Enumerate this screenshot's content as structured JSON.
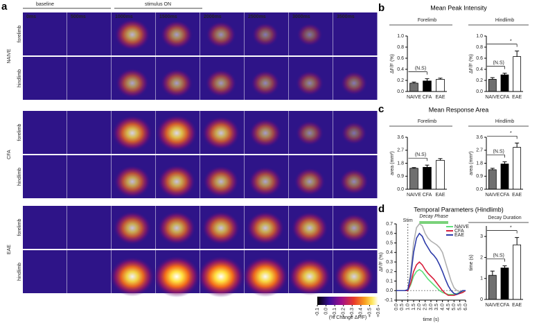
{
  "panel_a": {
    "label": "a",
    "phases": [
      "baseline",
      "stimulus ON"
    ],
    "times": [
      "0ms",
      "500ms",
      "1000ms",
      "1500ms",
      "2000ms",
      "2500ms",
      "3000ms",
      "3500ms"
    ],
    "groups": [
      {
        "name": "NAIVE",
        "rows": [
          "forelimb",
          "hindlimb"
        ]
      },
      {
        "name": "CFA",
        "rows": [
          "forelimb",
          "hindlimb"
        ]
      },
      {
        "name": "EAE",
        "rows": [
          "forelimb",
          "hindlimb"
        ]
      }
    ],
    "colorbar": {
      "lim": [
        -0.1,
        0.6
      ],
      "ticks": [
        -0.1,
        {
          "value": 0,
          "label": "0.0"
        },
        {
          "value": 0.1,
          "label": "+0.1"
        },
        {
          "value": 0.2,
          "label": "+0.2"
        },
        {
          "value": 0.3,
          "label": "+0.3"
        },
        {
          "value": 0.4,
          "label": "+0.4"
        },
        {
          "value": 0.5,
          "label": "+0.5"
        },
        {
          "value": 0.6,
          "label": "+0.6"
        }
      ],
      "label": "(% Change ΔF/F)"
    }
  },
  "panels": [
    {
      "label": "b",
      "title": "Mean Peak Intensity"
    },
    {
      "label": "c",
      "title": "Mean Response Area"
    },
    {
      "label": "d",
      "title": "Temporal Parameters (Hindlimb)"
    }
  ],
  "chart_data": [
    {
      "type": "bar",
      "title": "Forelimb",
      "y_label": "ΔF/F (%)",
      "categories": [
        "NAIVE",
        "CFA",
        "EAE"
      ],
      "values": [
        0.15,
        0.19,
        0.22
      ],
      "errors": [
        0.02,
        0.04,
        0.02
      ],
      "colors": [
        "#707070",
        "#000000",
        "#ffffff"
      ],
      "ylim": [
        0,
        1
      ],
      "yticks": [
        {
          "value": 0,
          "label": "0.0"
        },
        0.2,
        0.4,
        0.6,
        0.8,
        {
          "value": 1,
          "label": "1.0"
        }
      ],
      "annotations": [
        "(N.S)"
      ]
    },
    {
      "type": "bar",
      "title": "Hindlimb",
      "y_label": "ΔF/F (%)",
      "categories": [
        "NAIVE",
        "CFA",
        "EAE"
      ],
      "values": [
        0.22,
        0.3,
        0.63
      ],
      "errors": [
        0.03,
        0.03,
        0.1
      ],
      "colors": [
        "#707070",
        "#000000",
        "#ffffff"
      ],
      "ylim": [
        0,
        1
      ],
      "yticks": [
        {
          "value": 0,
          "label": "0.0"
        },
        0.2,
        0.4,
        0.6,
        0.8,
        {
          "value": 1,
          "label": "1.0"
        }
      ],
      "annotations": [
        "(N.S)",
        "*"
      ]
    },
    {
      "type": "bar",
      "title": "Forelimb",
      "y_label": "area (mm²)",
      "categories": [
        "NAIVE",
        "CFA",
        "EAE"
      ],
      "values": [
        1.45,
        1.52,
        2.0
      ],
      "errors": [
        0.05,
        0.15,
        0.12
      ],
      "colors": [
        "#707070",
        "#000000",
        "#ffffff"
      ],
      "ylim": [
        0,
        3.6
      ],
      "yticks": [
        {
          "value": 0,
          "label": "0.0"
        },
        0.9,
        1.8,
        2.7,
        3.6
      ],
      "annotations": [
        "(N.S)"
      ]
    },
    {
      "type": "bar",
      "title": "Hindlimb",
      "y_label": "area (mm²)",
      "categories": [
        "NAIVE",
        "CFA",
        "EAE"
      ],
      "values": [
        1.35,
        1.75,
        2.9
      ],
      "errors": [
        0.1,
        0.15,
        0.3
      ],
      "colors": [
        "#707070",
        "#000000",
        "#ffffff"
      ],
      "ylim": [
        0,
        3.6
      ],
      "yticks": [
        {
          "value": 0,
          "label": "0.0"
        },
        0.9,
        1.8,
        2.7,
        3.6
      ],
      "annotations": [
        "(N.S)",
        "*"
      ]
    },
    {
      "type": "line",
      "y_label": "ΔF/F (%)",
      "x_label": "time (s)",
      "annotations": [
        "Stim",
        "Decay Phase"
      ],
      "x": [
        0,
        0.25,
        0.5,
        0.75,
        1,
        1.25,
        1.5,
        1.75,
        2,
        2.25,
        2.5,
        2.75,
        3,
        3.25,
        3.5,
        3.75,
        4,
        4.25,
        4.5,
        4.75,
        5,
        5.25,
        5.5,
        5.75,
        6
      ],
      "series": [
        {
          "color": "#b0b0b0",
          "values": [
            0,
            0,
            0,
            0,
            0.01,
            0.2,
            0.5,
            0.66,
            0.7,
            0.68,
            0.6,
            0.55,
            0.52,
            0.5,
            0.48,
            0.45,
            0.4,
            0.3,
            0.2,
            0.1,
            0.03,
            0,
            -0.01,
            0,
            0
          ]
        },
        {
          "name": "NAIVE",
          "color": "#5ee07a",
          "values": [
            0,
            0,
            0,
            0,
            0,
            0.06,
            0.15,
            0.2,
            0.22,
            0.2,
            0.16,
            0.12,
            0.09,
            0.06,
            0.03,
            0,
            -0.02,
            -0.03,
            -0.04,
            -0.04,
            -0.04,
            -0.03,
            -0.02,
            -0.01,
            0
          ]
        },
        {
          "name": "CFA",
          "color": "#d81e3c",
          "values": [
            0,
            0,
            0,
            0,
            0,
            0.08,
            0.2,
            0.27,
            0.3,
            0.27,
            0.22,
            0.18,
            0.15,
            0.12,
            0.08,
            0.04,
            0,
            -0.03,
            -0.05,
            -0.05,
            -0.05,
            -0.04,
            -0.03,
            -0.02,
            0
          ]
        },
        {
          "name": "EAE",
          "color": "#2c3aa8",
          "values": [
            0,
            0,
            0,
            0,
            0.01,
            0.15,
            0.4,
            0.55,
            0.6,
            0.57,
            0.5,
            0.45,
            0.4,
            0.37,
            0.33,
            0.27,
            0.2,
            0.12,
            0.05,
            0,
            -0.03,
            -0.04,
            -0.02,
            0,
            0
          ]
        }
      ],
      "xlim": [
        0,
        6
      ],
      "ylim": [
        -0.1,
        0.7
      ],
      "xticks": [
        {
          "value": 0,
          "label": "0.0"
        },
        0.5,
        {
          "value": 1,
          "label": "1.0"
        },
        1.5,
        {
          "value": 2,
          "label": "2.0"
        },
        2.5,
        {
          "value": 3,
          "label": "3.0"
        },
        3.5,
        {
          "value": 4,
          "label": "4.0"
        },
        4.5,
        {
          "value": 5,
          "label": "5.0"
        },
        5.5,
        {
          "value": 6,
          "label": "6.0"
        }
      ],
      "yticks": [
        -0.1,
        {
          "value": 0,
          "label": "0.0"
        },
        0.1,
        0.2,
        0.3,
        0.4,
        0.5,
        0.6,
        0.7
      ]
    },
    {
      "type": "bar",
      "title": "Decay Duration",
      "y_label": "time (s)",
      "categories": [
        "NAIVE",
        "CFA",
        "EAE"
      ],
      "values": [
        1.15,
        1.5,
        2.6
      ],
      "errors": [
        0.2,
        0.1,
        0.35
      ],
      "colors": [
        "#707070",
        "#000000",
        "#ffffff"
      ],
      "ylim": [
        0,
        3.5
      ],
      "yticks": [
        0,
        1,
        2,
        3
      ],
      "annotations": [
        "(N.S)",
        "*"
      ]
    }
  ]
}
